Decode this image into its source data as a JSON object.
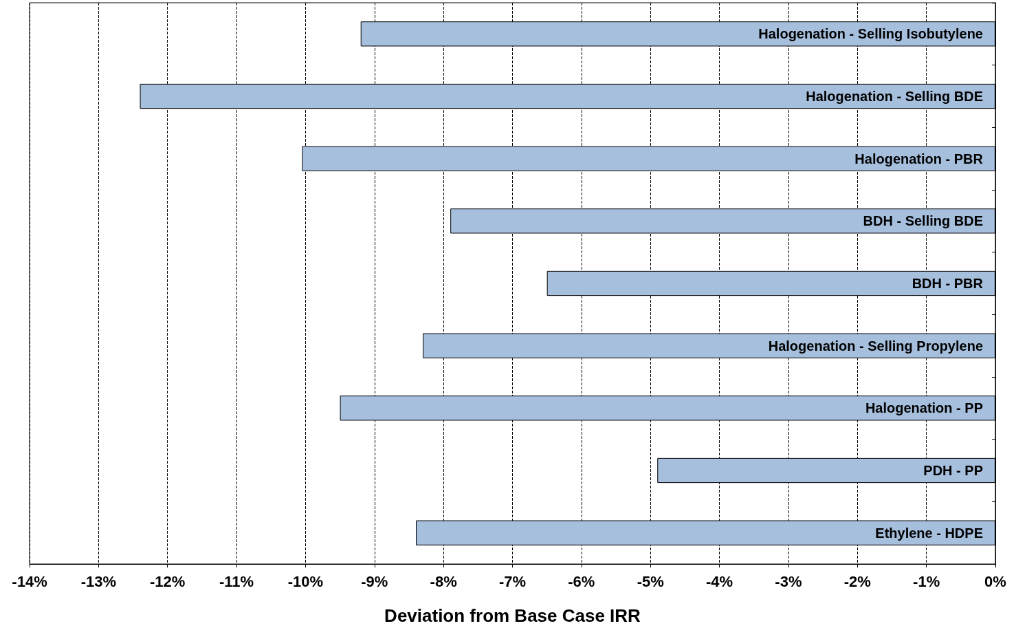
{
  "chart_data": {
    "type": "bar",
    "orientation": "horizontal",
    "xlabel": "Deviation from Base Case IRR",
    "categories": [
      "Halogenation - Selling Isobutylene",
      "Halogenation - Selling BDE",
      "Halogenation - PBR",
      "BDH - Selling BDE",
      "BDH - PBR",
      "Halogenation - Selling Propylene",
      "Halogenation - PP",
      "PDH - PP",
      "Ethylene - HDPE"
    ],
    "values": [
      -9.2,
      -12.4,
      -10.05,
      -7.9,
      -6.5,
      -8.3,
      -9.5,
      -4.9,
      -8.4
    ],
    "color": "#a6bfdd",
    "xlim": [
      -14,
      0
    ],
    "xticks": [
      {
        "value": -14,
        "label": "-14%"
      },
      {
        "value": -13,
        "label": "-13%"
      },
      {
        "value": -12,
        "label": "-12%"
      },
      {
        "value": -11,
        "label": "-11%"
      },
      {
        "value": -10,
        "label": "-10%"
      },
      {
        "value": -9,
        "label": "-9%"
      },
      {
        "value": -8,
        "label": "-8%"
      },
      {
        "value": -7,
        "label": "-7%"
      },
      {
        "value": -6,
        "label": "-6%"
      },
      {
        "value": -5,
        "label": "-5%"
      },
      {
        "value": -4,
        "label": "-4%"
      },
      {
        "value": -3,
        "label": "-3%"
      },
      {
        "value": -2,
        "label": "-2%"
      },
      {
        "value": -1,
        "label": "-1%"
      },
      {
        "value": 0,
        "label": "0%"
      }
    ],
    "grid": "x"
  }
}
